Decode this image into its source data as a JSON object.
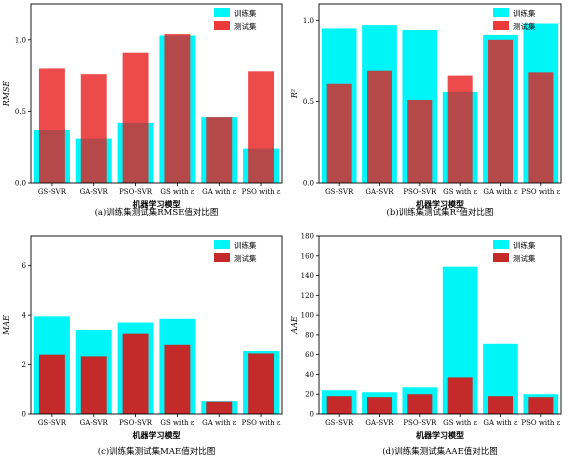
{
  "colors": {
    "train": "#00f5f8",
    "test": "#e81818",
    "overlap": "#c42a2a"
  },
  "legend": {
    "train_label": "训练集",
    "test_label": "测试集",
    "placement": "top-right"
  },
  "chart_data": [
    {
      "type": "bar",
      "categories": [
        "GS-SVR",
        "GA-SVR",
        "PSO-SVR",
        "GS with ε",
        "GA with ε",
        "PSO with ε"
      ],
      "series": [
        {
          "name": "训练集",
          "values": [
            0.37,
            0.31,
            0.42,
            1.03,
            0.46,
            0.24
          ]
        },
        {
          "name": "测试集",
          "values": [
            0.8,
            0.76,
            0.91,
            1.04,
            0.46,
            0.78
          ]
        }
      ],
      "ylabel": "RMSE",
      "xlabel": "机器学习模型",
      "ylim": [
        0,
        1.25
      ],
      "yticks": [
        "0.0",
        "0.5",
        "1.0"
      ],
      "ytick_values": [
        0,
        0.5,
        1.0
      ],
      "caption": "(a)训练集测试集RMSE值对比图",
      "test_opaque": false
    },
    {
      "type": "bar",
      "categories": [
        "GS-SVR",
        "GA-SVR",
        "PSO-SVR",
        "GS with ε",
        "GA with ε",
        "PSO with ε"
      ],
      "series": [
        {
          "name": "训练集",
          "values": [
            0.95,
            0.97,
            0.94,
            0.56,
            0.91,
            0.98
          ]
        },
        {
          "name": "测试集",
          "values": [
            0.61,
            0.69,
            0.51,
            0.66,
            0.88,
            0.68
          ]
        }
      ],
      "ylabel": "R²",
      "xlabel": "机器学习模型",
      "ylim": [
        0,
        1.1
      ],
      "yticks": [
        "0.0",
        "0.5",
        "1.0"
      ],
      "ytick_values": [
        0,
        0.5,
        1.0
      ],
      "caption": "(b)训练集测试集R²值对比图",
      "test_opaque": false
    },
    {
      "type": "bar",
      "categories": [
        "GS-SVR",
        "GA-SVR",
        "PSO-SVR",
        "GS with ε",
        "GA with ε",
        "PSO with ε"
      ],
      "series": [
        {
          "name": "训练集",
          "values": [
            3.95,
            3.4,
            3.7,
            3.85,
            0.52,
            2.55
          ]
        },
        {
          "name": "测试集",
          "values": [
            2.4,
            2.33,
            3.25,
            2.8,
            0.5,
            2.45
          ]
        }
      ],
      "ylabel": "MAE",
      "xlabel": "机器学习模型",
      "ylim": [
        0,
        7.2
      ],
      "yticks": [
        "0",
        "2",
        "4",
        "6"
      ],
      "ytick_values": [
        0,
        2,
        4,
        6
      ],
      "caption": "(c)训练集测试集MAE值对比图",
      "test_opaque": true
    },
    {
      "type": "bar",
      "categories": [
        "GS-SVR",
        "GA-SVR",
        "PSO-SVR",
        "GS with ε",
        "GA with ε",
        "PSO with ε"
      ],
      "series": [
        {
          "name": "训练集",
          "values": [
            24,
            22,
            27,
            149,
            71,
            20
          ]
        },
        {
          "name": "测试集",
          "values": [
            18,
            17,
            20,
            37,
            18,
            17
          ]
        }
      ],
      "ylabel": "AAE",
      "xlabel": "机器学习模型",
      "ylim": [
        0,
        180
      ],
      "yticks": [
        "0",
        "20",
        "40",
        "60",
        "80",
        "100",
        "120",
        "140",
        "160",
        "180"
      ],
      "ytick_values": [
        0,
        20,
        40,
        60,
        80,
        100,
        120,
        140,
        160,
        180
      ],
      "caption": "(d)训练集测试集AAE值对比图",
      "test_opaque": true
    }
  ]
}
